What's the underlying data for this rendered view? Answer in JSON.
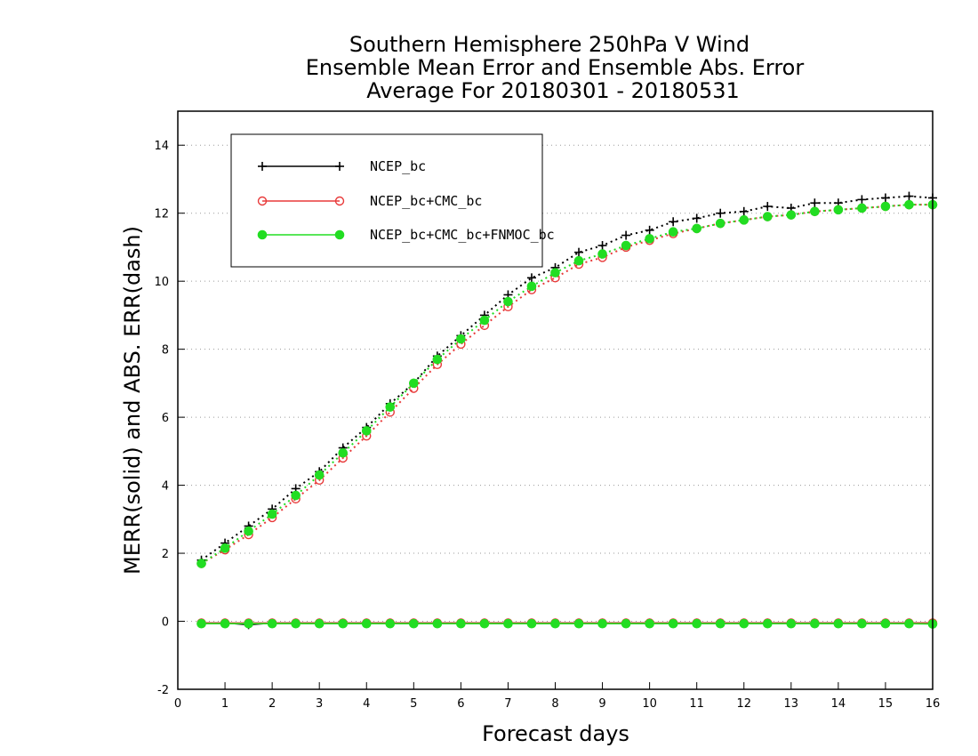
{
  "chart_data": {
    "type": "line",
    "title_lines": [
      "Southern Hemisphere 250hPa V Wind",
      "Ensemble Mean Error and Ensemble Abs. Error",
      "Average For 20180301 - 20180531"
    ],
    "xlabel": "Forecast days",
    "ylabel": "MERR(solid) and ABS. ERR(dash)",
    "xlim": [
      0,
      16
    ],
    "ylim": [
      -2,
      15
    ],
    "xticks": [
      "0",
      "1",
      "2",
      "3",
      "4",
      "5",
      "6",
      "7",
      "8",
      "9",
      "10",
      "11",
      "12",
      "13",
      "14",
      "15",
      "16"
    ],
    "yticks": [
      "-2",
      "0",
      "2",
      "4",
      "6",
      "8",
      "10",
      "12",
      "14"
    ],
    "grid": "horizontal dotted",
    "legend_position": "top-left",
    "x": [
      0.5,
      1,
      1.5,
      2,
      2.5,
      3,
      3.5,
      4,
      4.5,
      5,
      5.5,
      6,
      6.5,
      7,
      7.5,
      8,
      8.5,
      9,
      9.5,
      10,
      10.5,
      11,
      11.5,
      12,
      12.5,
      13,
      13.5,
      14,
      14.5,
      15,
      15.5,
      16
    ],
    "series": [
      {
        "name": "NCEP_bc",
        "color": "#000000",
        "marker": "plus",
        "abs_err": [
          1.8,
          2.3,
          2.8,
          3.3,
          3.9,
          4.4,
          5.1,
          5.7,
          6.4,
          7.0,
          7.8,
          8.4,
          9.0,
          9.6,
          10.1,
          10.4,
          10.85,
          11.05,
          11.35,
          11.5,
          11.75,
          11.85,
          12.0,
          12.05,
          12.2,
          12.15,
          12.3,
          12.3,
          12.4,
          12.45,
          12.5,
          12.45
        ],
        "mean_err": [
          -0.05,
          -0.05,
          -0.1,
          -0.05,
          -0.05,
          -0.05,
          -0.05,
          -0.05,
          -0.05,
          -0.05,
          -0.05,
          -0.05,
          -0.05,
          -0.05,
          -0.05,
          -0.05,
          -0.05,
          -0.05,
          -0.05,
          -0.05,
          -0.05,
          -0.05,
          -0.05,
          -0.05,
          -0.05,
          -0.05,
          -0.05,
          -0.05,
          -0.05,
          -0.05,
          -0.05,
          -0.05
        ]
      },
      {
        "name": "NCEP_bc+CMC_bc",
        "color": "#e83a3a",
        "marker": "open-circle",
        "abs_err": [
          1.7,
          2.1,
          2.55,
          3.05,
          3.6,
          4.15,
          4.8,
          5.45,
          6.15,
          6.85,
          7.55,
          8.15,
          8.7,
          9.25,
          9.75,
          10.1,
          10.5,
          10.7,
          11.0,
          11.2,
          11.4,
          11.55,
          11.7,
          11.8,
          11.9,
          11.95,
          12.05,
          12.1,
          12.15,
          12.2,
          12.25,
          12.25
        ],
        "mean_err": [
          -0.05,
          -0.05,
          -0.05,
          -0.05,
          -0.05,
          -0.05,
          -0.05,
          -0.05,
          -0.05,
          -0.05,
          -0.05,
          -0.05,
          -0.05,
          -0.05,
          -0.05,
          -0.05,
          -0.05,
          -0.05,
          -0.05,
          -0.05,
          -0.05,
          -0.05,
          -0.05,
          -0.05,
          -0.05,
          -0.05,
          -0.05,
          -0.05,
          -0.05,
          -0.05,
          -0.05,
          -0.05
        ]
      },
      {
        "name": "NCEP_bc+CMC_bc+FNMOC_bc",
        "color": "#22dd22",
        "marker": "filled-circle",
        "abs_err": [
          1.7,
          2.15,
          2.65,
          3.15,
          3.7,
          4.3,
          4.95,
          5.6,
          6.3,
          7.0,
          7.7,
          8.3,
          8.85,
          9.4,
          9.85,
          10.25,
          10.6,
          10.8,
          11.05,
          11.25,
          11.45,
          11.55,
          11.7,
          11.8,
          11.9,
          11.95,
          12.05,
          12.1,
          12.15,
          12.2,
          12.25,
          12.25
        ],
        "mean_err": [
          -0.07,
          -0.07,
          -0.07,
          -0.07,
          -0.07,
          -0.07,
          -0.07,
          -0.07,
          -0.07,
          -0.07,
          -0.07,
          -0.07,
          -0.07,
          -0.07,
          -0.07,
          -0.07,
          -0.07,
          -0.07,
          -0.07,
          -0.07,
          -0.07,
          -0.07,
          -0.07,
          -0.07,
          -0.07,
          -0.07,
          -0.07,
          -0.07,
          -0.07,
          -0.07,
          -0.07,
          -0.08
        ]
      }
    ]
  }
}
